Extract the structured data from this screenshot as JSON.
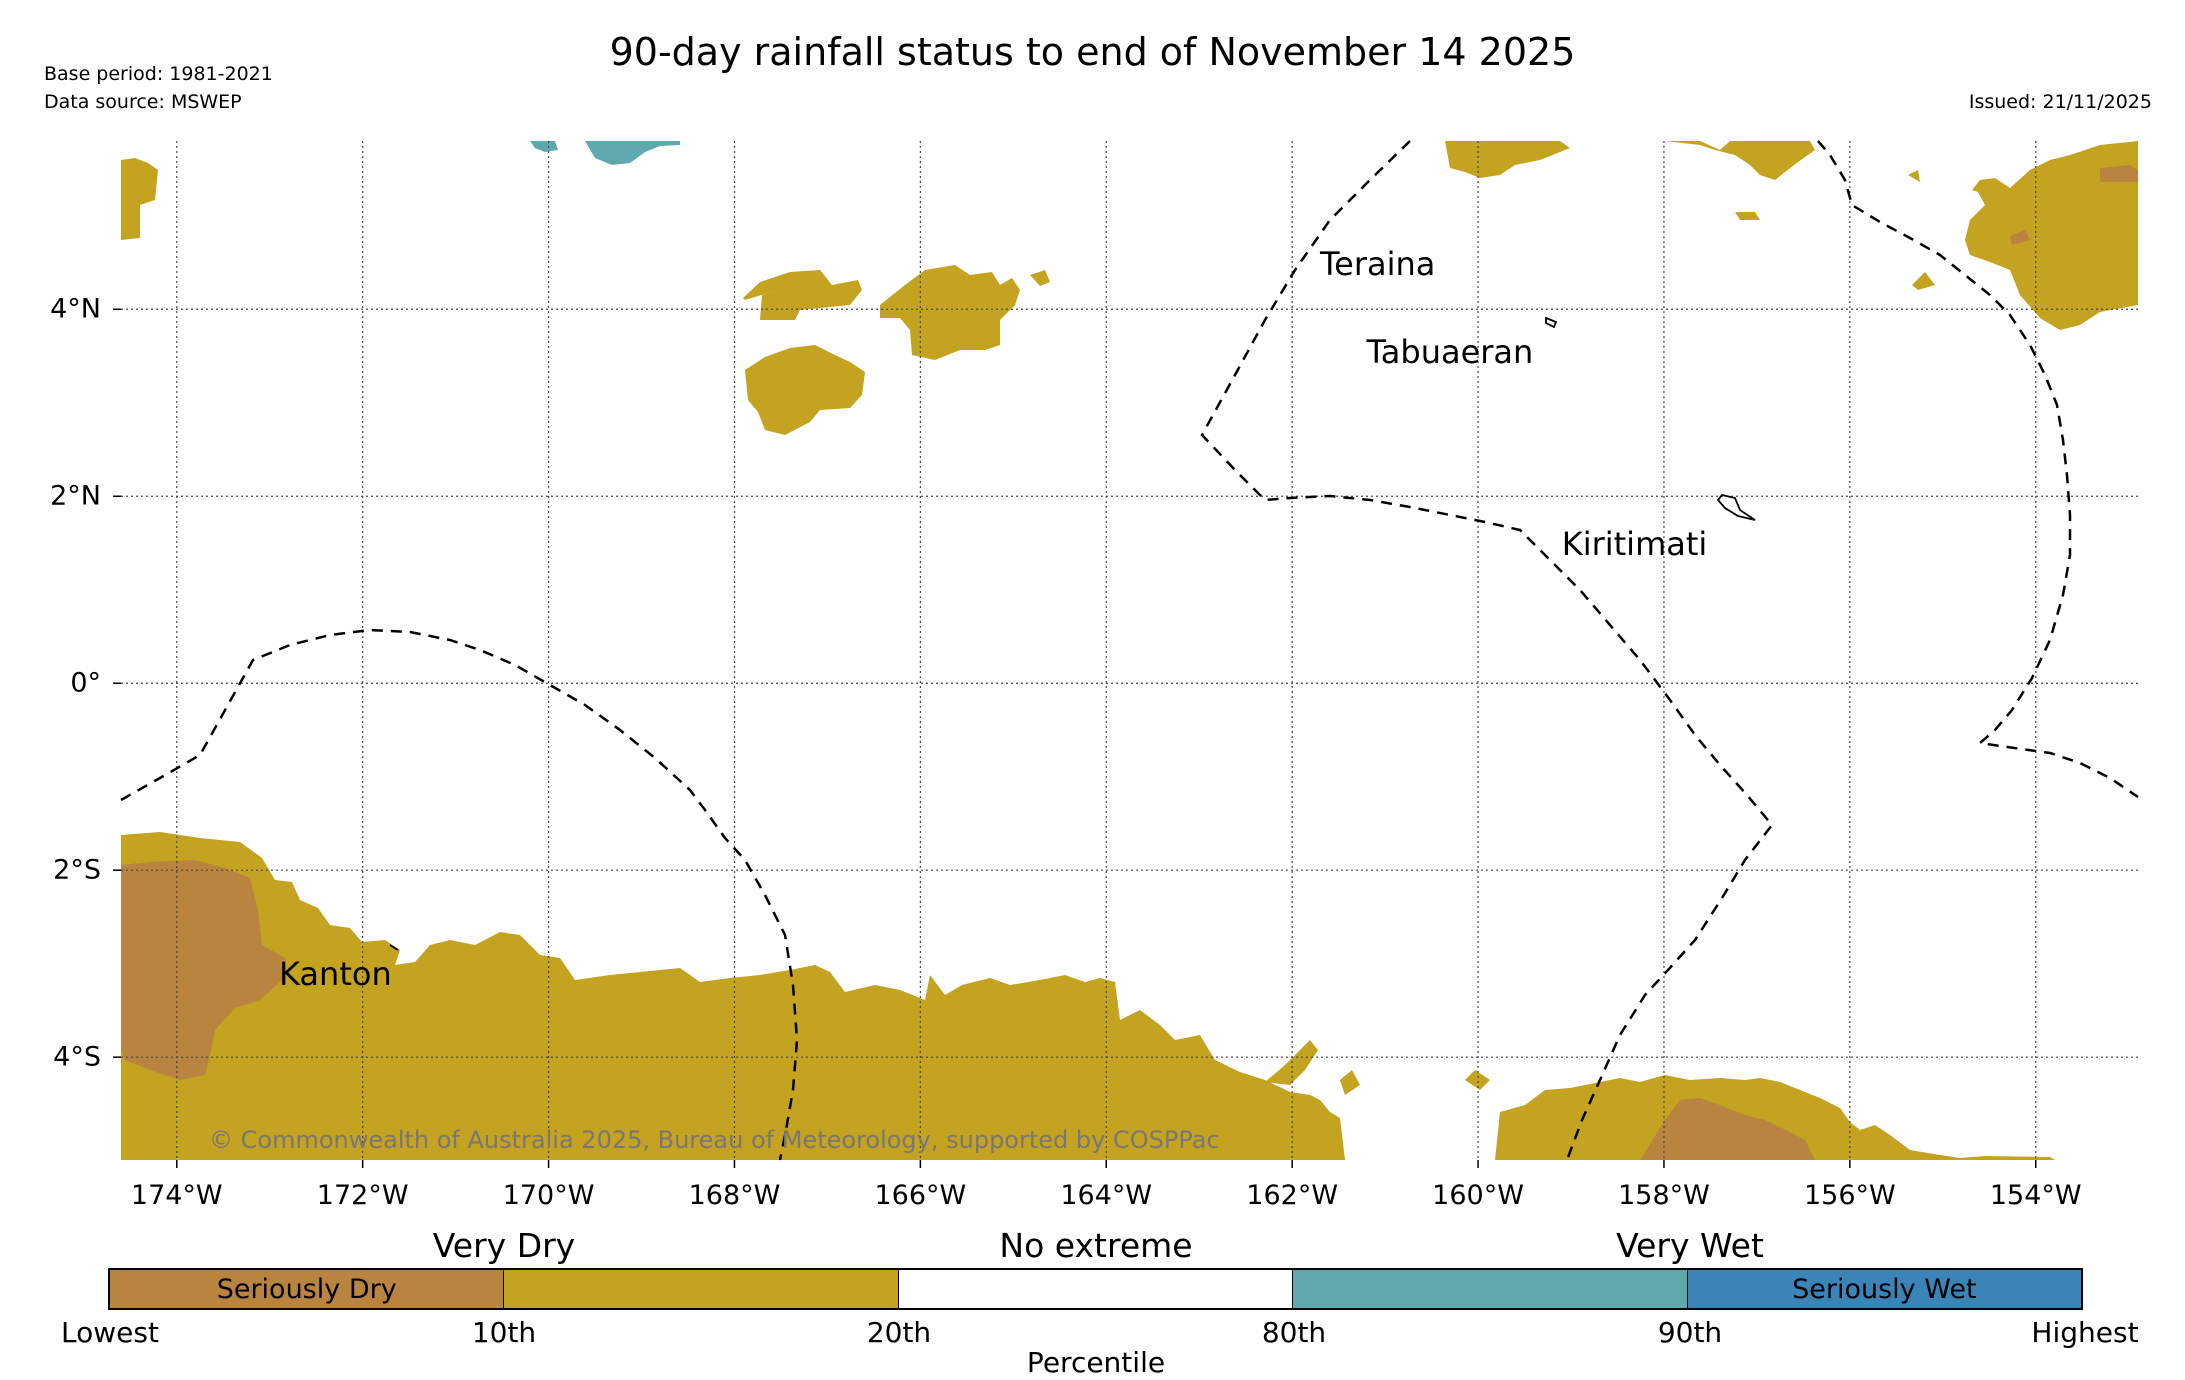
{
  "title": "90-day rainfall status to end of November 14 2025",
  "base_period": "Base period: 1981-2021",
  "data_source": "Data source: MSWEP",
  "issued": "Issued: 21/11/2025",
  "copyright": "© Commonwealth of Australia 2025, Bureau of Meteorology, supported by COSPPac",
  "map": {
    "lon_range": [
      -174.6,
      -152.9
    ],
    "lat_range": [
      -5.1,
      5.8
    ],
    "lon_ticks": [
      {
        "value": -174,
        "label": "174°W"
      },
      {
        "value": -172,
        "label": "172°W"
      },
      {
        "value": -170,
        "label": "170°W"
      },
      {
        "value": -168,
        "label": "168°W"
      },
      {
        "value": -166,
        "label": "166°W"
      },
      {
        "value": -164,
        "label": "164°W"
      },
      {
        "value": -162,
        "label": "162°W"
      },
      {
        "value": -160,
        "label": "160°W"
      },
      {
        "value": -158,
        "label": "158°W"
      },
      {
        "value": -156,
        "label": "156°W"
      },
      {
        "value": -154,
        "label": "154°W"
      }
    ],
    "lat_ticks": [
      {
        "value": 4,
        "label": "4°N"
      },
      {
        "value": 2,
        "label": "2°N"
      },
      {
        "value": 0,
        "label": "0°"
      },
      {
        "value": -2,
        "label": "2°S"
      },
      {
        "value": -4,
        "label": "4°S"
      }
    ],
    "places": [
      {
        "name": "Teraina",
        "lon": -161.7,
        "lat": 4.5
      },
      {
        "name": "Tabuaeran",
        "lon": -161.2,
        "lat": 3.55
      },
      {
        "name": "Kiritimati",
        "lon": -159.1,
        "lat": 1.5
      },
      {
        "name": "Kanton",
        "lon": -172.9,
        "lat": -3.1
      }
    ]
  },
  "legend": {
    "headers": [
      "Very Dry",
      "No extreme",
      "Very Wet"
    ],
    "segments": [
      {
        "label": "Seriously Dry",
        "color": "#b8843f"
      },
      {
        "label": "",
        "color": "#c3a31f"
      },
      {
        "label": "",
        "color": "#ffffff"
      },
      {
        "label": "",
        "color": "#5ea9ae"
      },
      {
        "label": "Seriously Wet",
        "color": "#3a84b7"
      }
    ],
    "ticks": [
      "Lowest",
      "10th",
      "20th",
      "80th",
      "90th",
      "Highest"
    ],
    "axis_title": "Percentile"
  }
}
